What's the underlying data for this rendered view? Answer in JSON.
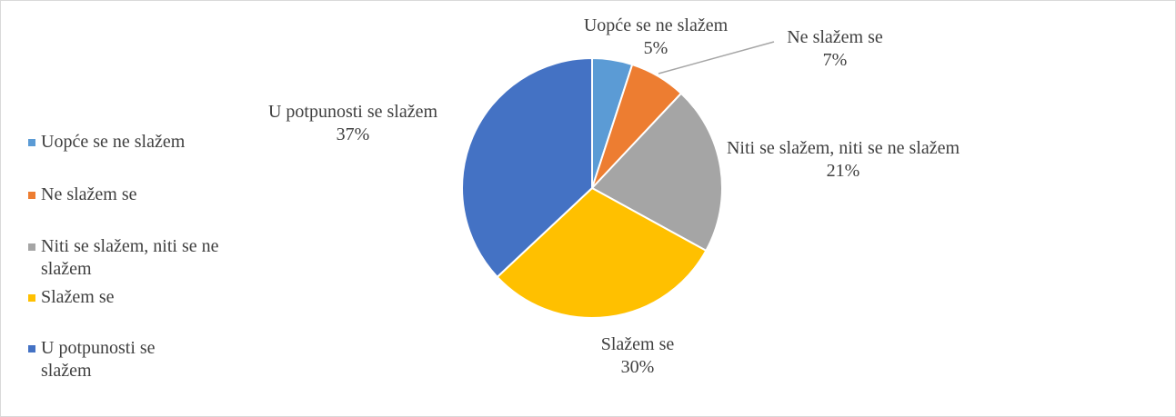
{
  "chart_data": {
    "type": "pie",
    "categories": [
      "Uopće se ne slažem",
      "Ne slažem se",
      "Niti se slažem, niti se ne slažem",
      "Slažem se",
      "U potpunosti se slažem"
    ],
    "values": [
      5,
      7,
      21,
      30,
      37
    ],
    "value_labels": [
      "5%",
      "7%",
      "21%",
      "30%",
      "37%"
    ],
    "colors": [
      "#5b9bd5",
      "#ed7d31",
      "#a5a5a5",
      "#ffc000",
      "#4472c4"
    ],
    "legend": "left"
  }
}
